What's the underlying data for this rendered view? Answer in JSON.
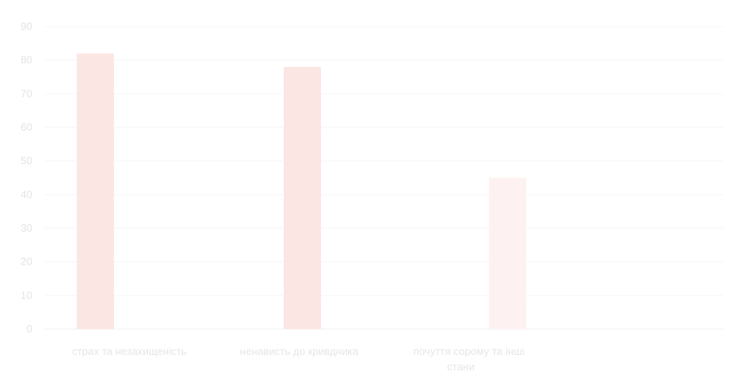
{
  "chart_data": {
    "type": "bar",
    "categories": [
      "страх та незахищеність",
      "ненависть до кривдника",
      "почуття сорому та інші стани"
    ],
    "category_lines": [
      [
        "страх та незахищеність"
      ],
      [
        "ненависть до кривдника"
      ],
      [
        "почуття сорому та інші",
        "стани"
      ]
    ],
    "values": [
      82,
      78,
      45
    ],
    "ylim": [
      0,
      90
    ],
    "yticks": [
      0,
      10,
      20,
      30,
      40,
      50,
      60,
      70,
      80,
      90
    ],
    "grid": true,
    "colors": [
      "#fbe6e4",
      "#fbe6e4",
      "#fdf2f1"
    ]
  }
}
